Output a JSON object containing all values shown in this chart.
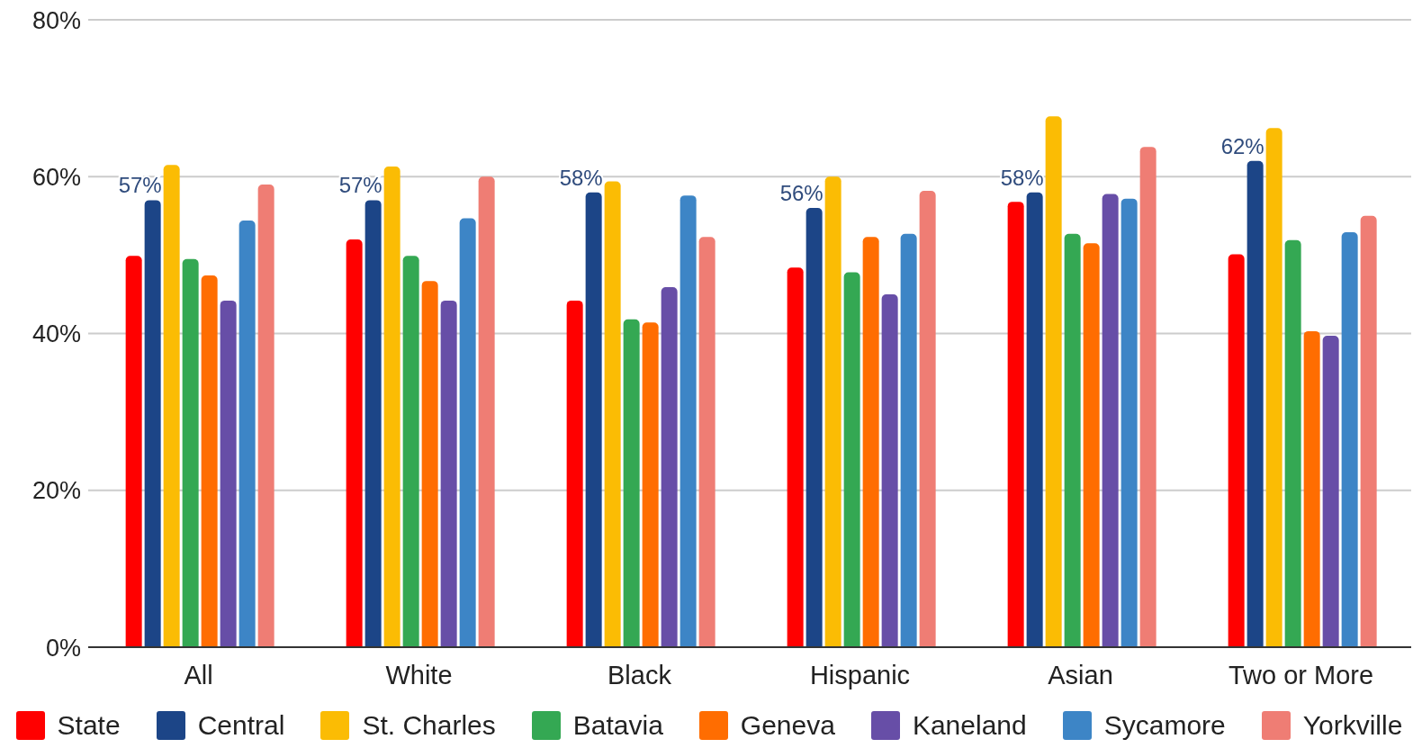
{
  "chart_data": {
    "type": "bar",
    "categories": [
      "All",
      "White",
      "Black",
      "Hispanic",
      "Asian",
      "Two or More"
    ],
    "series": [
      {
        "name": "State",
        "color": "#ff0000",
        "values": [
          49.9,
          52.0,
          44.2,
          48.4,
          56.8,
          50.1
        ]
      },
      {
        "name": "Central",
        "color": "#1c4587",
        "values": [
          57,
          57,
          58,
          56,
          58,
          62
        ],
        "value_labels": [
          "57%",
          "57%",
          "58%",
          "56%",
          "58%",
          "62%"
        ]
      },
      {
        "name": "St. Charles",
        "color": "#fbbc04",
        "values": [
          61.5,
          61.3,
          59.4,
          60.0,
          67.7,
          66.2
        ]
      },
      {
        "name": "Batavia",
        "color": "#34a853",
        "values": [
          49.5,
          49.9,
          41.8,
          47.8,
          52.7,
          51.9
        ]
      },
      {
        "name": "Geneva",
        "color": "#ff6d01",
        "values": [
          47.4,
          46.7,
          41.4,
          52.3,
          51.5,
          40.3
        ]
      },
      {
        "name": "Kaneland",
        "color": "#674ea7",
        "values": [
          44.2,
          44.2,
          45.9,
          45.0,
          57.8,
          39.7
        ]
      },
      {
        "name": "Sycamore",
        "color": "#3d85c6",
        "values": [
          54.4,
          54.7,
          57.6,
          52.7,
          57.2,
          52.9
        ]
      },
      {
        "name": "Yorkville",
        "color": "#ef7d74",
        "values": [
          59.0,
          60.0,
          52.3,
          58.2,
          63.8,
          55.0
        ]
      }
    ],
    "ylim": [
      0,
      80
    ],
    "yticks": [
      {
        "value": 0,
        "label": "0%"
      },
      {
        "value": 20,
        "label": "20%"
      },
      {
        "value": 40,
        "label": "40%"
      },
      {
        "value": 60,
        "label": "60%"
      },
      {
        "value": 80,
        "label": "80%"
      }
    ],
    "grid": "y",
    "legend": "bottom"
  }
}
